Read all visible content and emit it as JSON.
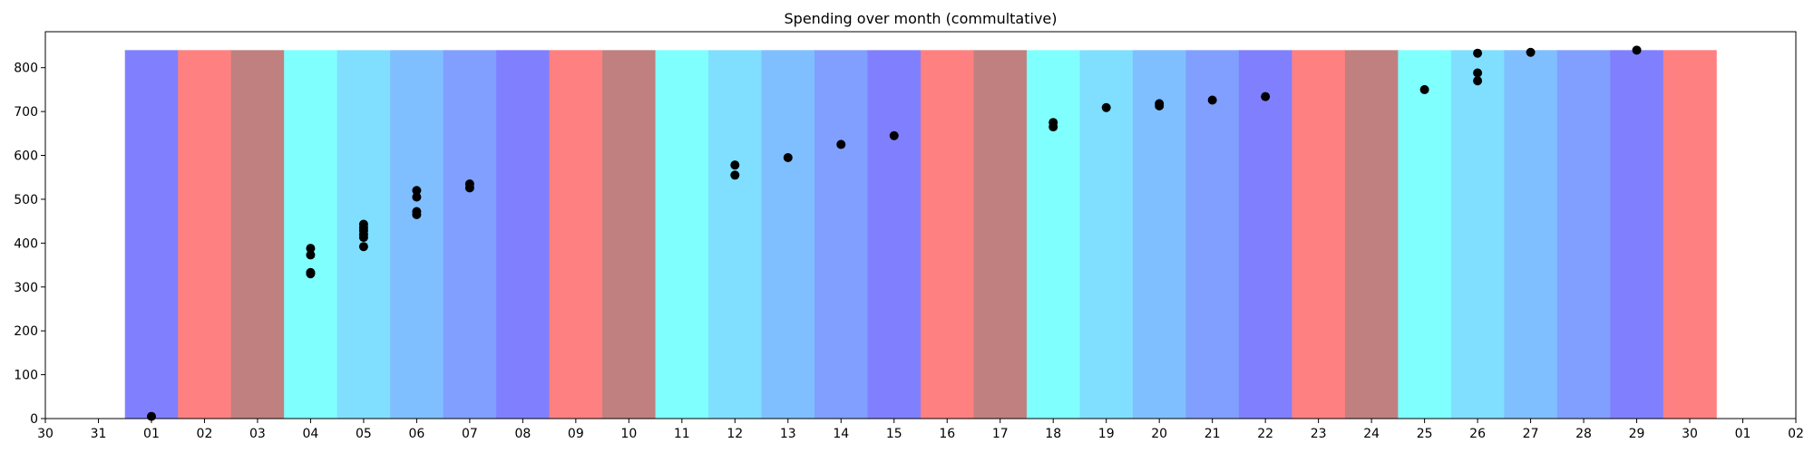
{
  "chart_data": {
    "type": "scatter",
    "title": "Spending over month (commultative)",
    "xlabel": "",
    "ylabel": "",
    "x_tick_labels": [
      "30",
      "31",
      "01",
      "02",
      "03",
      "04",
      "05",
      "06",
      "07",
      "08",
      "09",
      "10",
      "11",
      "12",
      "13",
      "14",
      "15",
      "16",
      "17",
      "18",
      "19",
      "20",
      "21",
      "22",
      "23",
      "24",
      "25",
      "26",
      "27",
      "28",
      "29",
      "30",
      "01",
      "02"
    ],
    "y_ticks": [
      0,
      100,
      200,
      300,
      400,
      500,
      600,
      700,
      800
    ],
    "ylim": [
      0,
      882
    ],
    "grid": false,
    "band_top": 840,
    "bands": [
      {
        "day": 1,
        "color": "#8080ff"
      },
      {
        "day": 2,
        "color": "#ff8080"
      },
      {
        "day": 3,
        "color": "#c08080"
      },
      {
        "day": 4,
        "color": "#80ffff"
      },
      {
        "day": 5,
        "color": "#80dfff"
      },
      {
        "day": 6,
        "color": "#80bfff"
      },
      {
        "day": 7,
        "color": "#809fff"
      },
      {
        "day": 8,
        "color": "#8080ff"
      },
      {
        "day": 9,
        "color": "#ff8080"
      },
      {
        "day": 10,
        "color": "#c08080"
      },
      {
        "day": 11,
        "color": "#80ffff"
      },
      {
        "day": 12,
        "color": "#80dfff"
      },
      {
        "day": 13,
        "color": "#80bfff"
      },
      {
        "day": 14,
        "color": "#809fff"
      },
      {
        "day": 15,
        "color": "#8080ff"
      },
      {
        "day": 16,
        "color": "#ff8080"
      },
      {
        "day": 17,
        "color": "#c08080"
      },
      {
        "day": 18,
        "color": "#80ffff"
      },
      {
        "day": 19,
        "color": "#80dfff"
      },
      {
        "day": 20,
        "color": "#80bfff"
      },
      {
        "day": 21,
        "color": "#809fff"
      },
      {
        "day": 22,
        "color": "#8080ff"
      },
      {
        "day": 23,
        "color": "#ff8080"
      },
      {
        "day": 24,
        "color": "#c08080"
      },
      {
        "day": 25,
        "color": "#80ffff"
      },
      {
        "day": 26,
        "color": "#80dfff"
      },
      {
        "day": 27,
        "color": "#80bfff"
      },
      {
        "day": 28,
        "color": "#809fff"
      },
      {
        "day": 29,
        "color": "#8080ff"
      },
      {
        "day": 30,
        "color": "#ff8080"
      }
    ],
    "series": [
      {
        "color": "#000000",
        "points": [
          {
            "day": 1,
            "y": 5
          },
          {
            "day": 4,
            "y": 330
          },
          {
            "day": 4,
            "y": 333
          },
          {
            "day": 4,
            "y": 373
          },
          {
            "day": 4,
            "y": 388
          },
          {
            "day": 5,
            "y": 392
          },
          {
            "day": 5,
            "y": 413
          },
          {
            "day": 5,
            "y": 420
          },
          {
            "day": 5,
            "y": 428
          },
          {
            "day": 5,
            "y": 435
          },
          {
            "day": 5,
            "y": 443
          },
          {
            "day": 6,
            "y": 465
          },
          {
            "day": 6,
            "y": 472
          },
          {
            "day": 6,
            "y": 505
          },
          {
            "day": 6,
            "y": 520
          },
          {
            "day": 7,
            "y": 526
          },
          {
            "day": 7,
            "y": 535
          },
          {
            "day": 12,
            "y": 555
          },
          {
            "day": 12,
            "y": 578
          },
          {
            "day": 13,
            "y": 595
          },
          {
            "day": 14,
            "y": 625
          },
          {
            "day": 15,
            "y": 645
          },
          {
            "day": 18,
            "y": 665
          },
          {
            "day": 18,
            "y": 675
          },
          {
            "day": 19,
            "y": 709
          },
          {
            "day": 20,
            "y": 713
          },
          {
            "day": 20,
            "y": 718
          },
          {
            "day": 21,
            "y": 726
          },
          {
            "day": 22,
            "y": 734
          },
          {
            "day": 25,
            "y": 750
          },
          {
            "day": 26,
            "y": 770
          },
          {
            "day": 26,
            "y": 788
          },
          {
            "day": 26,
            "y": 833
          },
          {
            "day": 27,
            "y": 835
          },
          {
            "day": 29,
            "y": 840
          }
        ]
      }
    ]
  }
}
